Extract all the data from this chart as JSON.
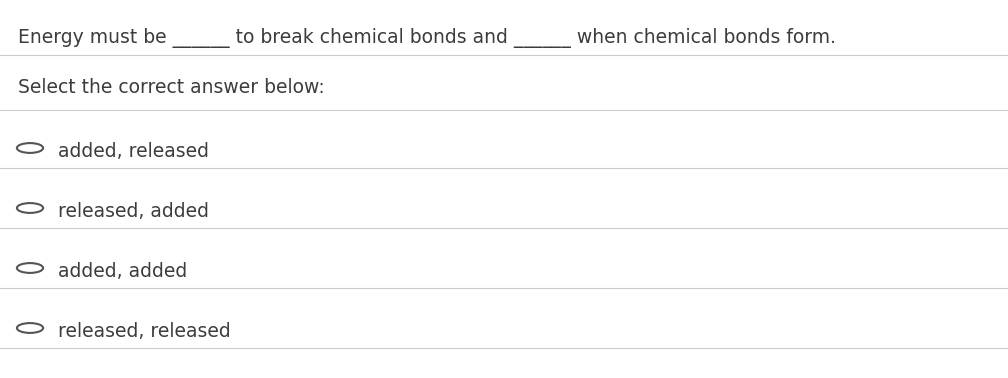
{
  "question": "Energy must be ______ to break chemical bonds and ______ when chemical bonds form.",
  "instruction": "Select the correct answer below:",
  "options": [
    "added, released",
    "released, added",
    "added, added",
    "released, released"
  ],
  "bg_color": "#ffffff",
  "text_color": "#3c3c3c",
  "font_size_question": 13.5,
  "font_size_options": 13.5,
  "font_size_instruction": 13.5,
  "line_color": "#cccccc",
  "circle_color": "#555555",
  "figsize": [
    10.08,
    3.78
  ],
  "dpi": 100
}
